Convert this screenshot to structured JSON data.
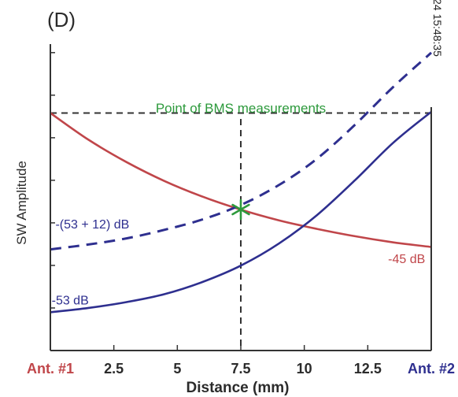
{
  "panel_label": "(D)",
  "timestamp": "24 15:48:35",
  "colors": {
    "red": "#c0464a",
    "blue": "#2e2f8f",
    "green": "#2d9a3c",
    "axis": "#333333",
    "tick_label": "#2b2b2b"
  },
  "chart_data": {
    "type": "line",
    "title": "",
    "xlabel": "Distance (mm)",
    "ylabel": "SW Amplitude",
    "xlim": [
      0,
      15
    ],
    "ylim": [
      0,
      1
    ],
    "x_ticks": [
      {
        "value": 0,
        "label": "Ant. #1",
        "color": "#c0464a"
      },
      {
        "value": 2.5,
        "label": "2.5"
      },
      {
        "value": 5,
        "label": "5"
      },
      {
        "value": 7.5,
        "label": "7.5"
      },
      {
        "value": 10,
        "label": "10"
      },
      {
        "value": 12.5,
        "label": "12.5"
      },
      {
        "value": 15,
        "label": "Ant. #2",
        "color": "#2e2f8f"
      }
    ],
    "series": [
      {
        "name": "-45 dB",
        "style": "solid",
        "color": "#c0464a",
        "x": [
          0,
          1.5,
          3,
          4.5,
          6,
          7.5,
          9,
          10.5,
          12,
          13.5,
          15
        ],
        "y": [
          0.775,
          0.688,
          0.615,
          0.553,
          0.502,
          0.46,
          0.425,
          0.397,
          0.373,
          0.353,
          0.338
        ]
      },
      {
        "name": "-53 dB",
        "style": "solid",
        "color": "#2e2f8f",
        "x": [
          0,
          1.5,
          3,
          4.5,
          6,
          7.5,
          9,
          10.5,
          12,
          13.5,
          15
        ],
        "y": [
          0.125,
          0.139,
          0.158,
          0.184,
          0.224,
          0.277,
          0.349,
          0.442,
          0.556,
          0.678,
          0.779
        ]
      },
      {
        "name": "-(53 + 12) dB",
        "style": "dashed",
        "color": "#2e2f8f",
        "x": [
          0,
          1.5,
          3,
          4.5,
          6,
          7.5,
          9,
          10.5,
          12,
          13.5,
          15
        ],
        "y": [
          0.33,
          0.346,
          0.366,
          0.394,
          0.428,
          0.475,
          0.54,
          0.626,
          0.737,
          0.86,
          0.972
        ]
      }
    ],
    "reference_lines": [
      {
        "type": "horizontal",
        "y": 0.775,
        "style": "dashed",
        "color": "#333333"
      },
      {
        "type": "vertical",
        "x": 7.5,
        "style": "dashed",
        "color": "#333333"
      }
    ],
    "annotations": {
      "point": {
        "x": 7.5,
        "y": 0.46,
        "marker": "star",
        "color": "#2d9a3c"
      },
      "point_label": {
        "text": "Point of BMS measurements",
        "color": "#2d9a3c"
      },
      "labels": [
        {
          "text": "-(53 + 12) dB",
          "x": 0.2,
          "y": 0.398,
          "color": "#2e2f8f"
        },
        {
          "text": "-53 dB",
          "x": 0.05,
          "y": 0.15,
          "color": "#2e2f8f"
        },
        {
          "text": "-45 dB",
          "x": 13.3,
          "y": 0.285,
          "color": "#c0464a"
        }
      ]
    },
    "y_ticks_count": 7,
    "grid": false,
    "legend": "none"
  }
}
